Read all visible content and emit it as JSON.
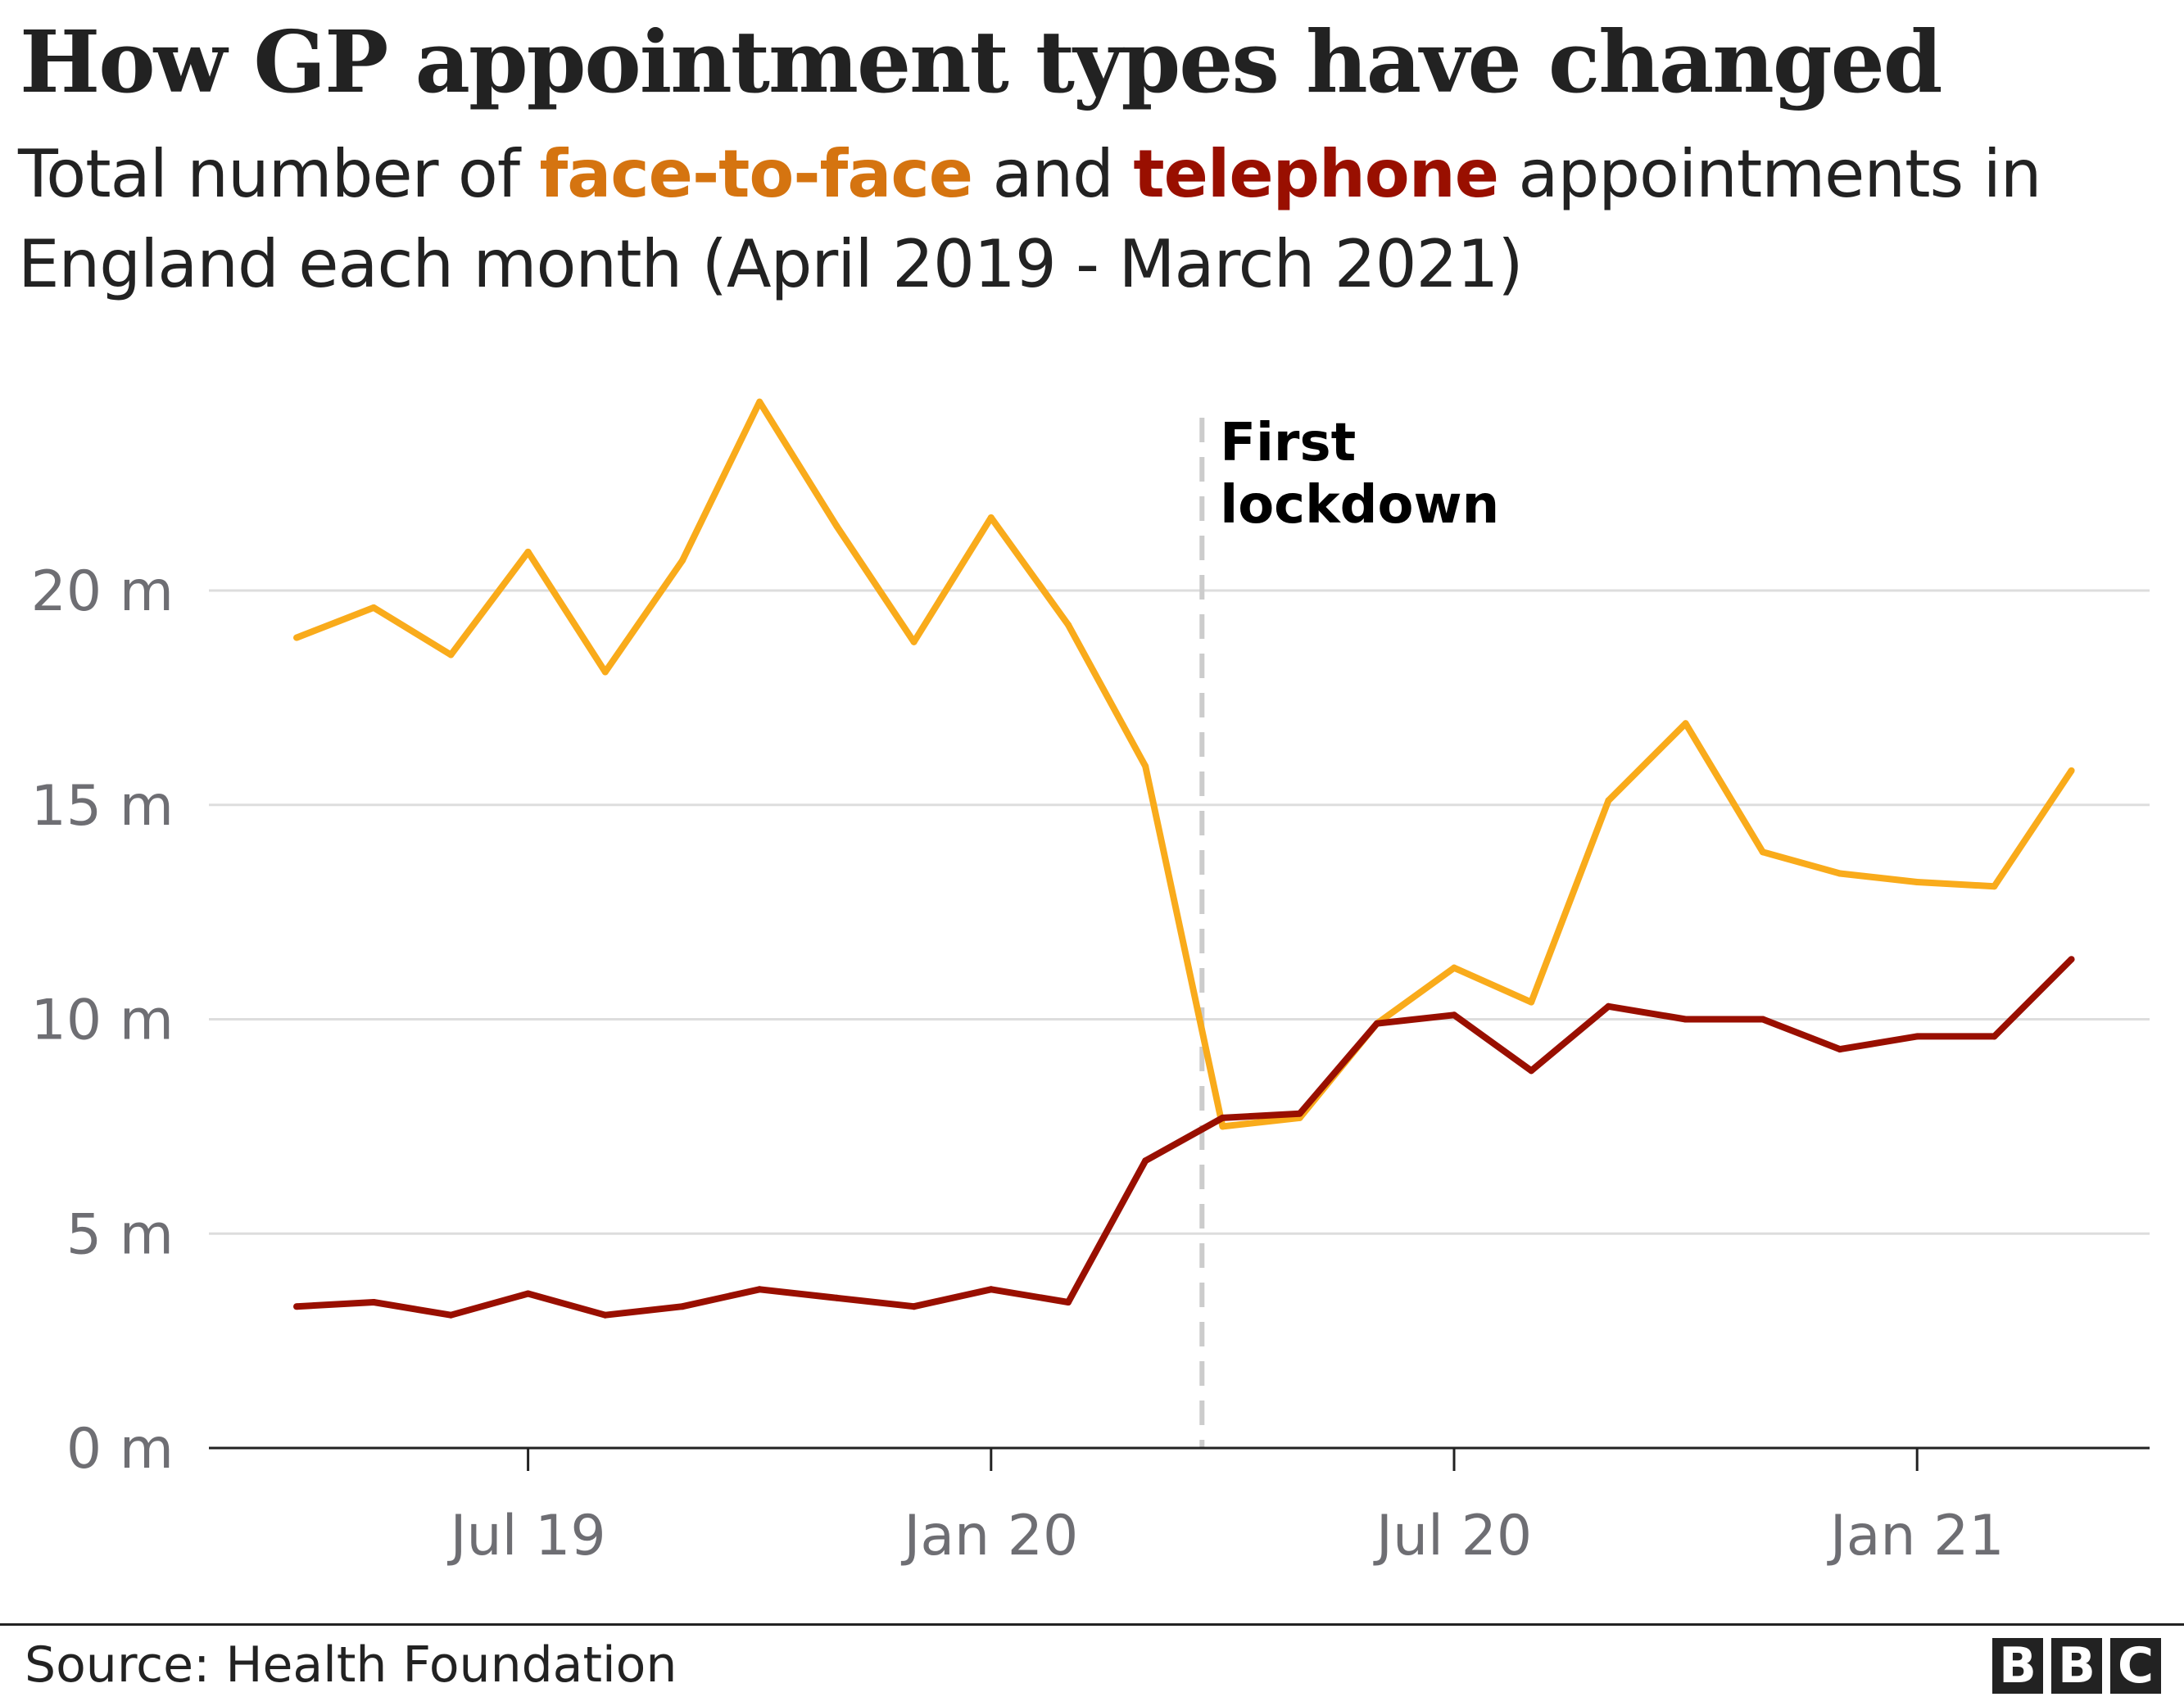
{
  "header": {
    "title": "How GP appointment types have changed",
    "subtitle_pre": "Total number of",
    "subtitle_ftf": "face-to-face",
    "subtitle_mid": "and",
    "subtitle_tel": "telephone",
    "subtitle_post": "appointments in England each month (April 2019 - March 2021)"
  },
  "footer": {
    "source": "Source: Health Foundation",
    "logo_letters": [
      "B",
      "B",
      "C"
    ]
  },
  "chart_data": {
    "type": "line",
    "title": "How GP appointment types have changed",
    "xlabel": "",
    "ylabel": "",
    "ylim": [
      0,
      25
    ],
    "grid": true,
    "legend": "none (colour-coded in subtitle)",
    "x": [
      "2019-04",
      "2019-05",
      "2019-06",
      "2019-07",
      "2019-08",
      "2019-09",
      "2019-10",
      "2019-11",
      "2019-12",
      "2020-01",
      "2020-02",
      "2020-03",
      "2020-04",
      "2020-05",
      "2020-06",
      "2020-07",
      "2020-08",
      "2020-09",
      "2020-10",
      "2020-11",
      "2020-12",
      "2021-01",
      "2021-02",
      "2021-03"
    ],
    "x_ticks": [
      {
        "month": "2019-07",
        "label": "Jul 19"
      },
      {
        "month": "2020-01",
        "label": "Jan 20"
      },
      {
        "month": "2020-07",
        "label": "Jul 20"
      },
      {
        "month": "2021-01",
        "label": "Jan 21"
      }
    ],
    "y_ticks": [
      {
        "value": 0,
        "label": "0 m"
      },
      {
        "value": 5,
        "label": "5 m"
      },
      {
        "value": 10,
        "label": "10 m"
      },
      {
        "value": 15,
        "label": "15 m"
      },
      {
        "value": 20,
        "label": "20 m"
      }
    ],
    "series": [
      {
        "name": "face-to-face",
        "color": "#f9ab1b",
        "values": [
          18.9,
          19.6,
          18.5,
          20.9,
          18.1,
          20.7,
          24.4,
          21.5,
          18.8,
          21.7,
          19.2,
          15.9,
          7.5,
          7.7,
          9.9,
          11.2,
          10.4,
          15.1,
          16.9,
          13.9,
          13.4,
          13.2,
          13.1,
          15.8
        ]
      },
      {
        "name": "telephone",
        "color": "#990f00",
        "values": [
          3.3,
          3.4,
          3.1,
          3.6,
          3.1,
          3.3,
          3.7,
          3.5,
          3.3,
          3.7,
          3.4,
          6.7,
          7.7,
          7.8,
          9.9,
          10.1,
          8.8,
          10.3,
          10.0,
          10.0,
          9.3,
          9.6,
          9.6,
          11.4
        ]
      }
    ],
    "annotations": [
      {
        "date": "2020-03-23",
        "line1": "First",
        "line2": "lockdown",
        "style": "dashed-vertical",
        "color": "#cccccc"
      }
    ]
  }
}
